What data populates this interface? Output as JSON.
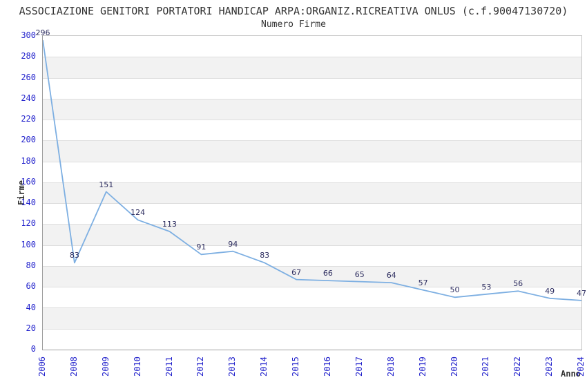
{
  "chart_data": {
    "type": "line",
    "title": "ASSOCIAZIONE GENITORI PORTATORI HANDICAP ARPA:ORGANIZ.RICREATIVA ONLUS (c.f.90047130720)",
    "subtitle": "Numero Firme",
    "xlabel": "Anno",
    "ylabel": "Firme",
    "x": [
      "2006",
      "2008",
      "2009",
      "2010",
      "2011",
      "2012",
      "2013",
      "2014",
      "2015",
      "2016",
      "2017",
      "2018",
      "2019",
      "2020",
      "2021",
      "2022",
      "2023",
      "2024"
    ],
    "values": [
      296,
      83,
      151,
      124,
      113,
      91,
      94,
      83,
      67,
      66,
      65,
      64,
      57,
      50,
      53,
      56,
      49,
      47
    ],
    "ylim": [
      0,
      300
    ],
    "ytick_step": 20,
    "y_ticks": [
      "0",
      "20",
      "40",
      "60",
      "80",
      "100",
      "120",
      "140",
      "160",
      "180",
      "200",
      "220",
      "240",
      "260",
      "280",
      "300"
    ],
    "grid": "horizontal gridlines with alternating gray bands",
    "legend": "none",
    "point_markers": false
  },
  "colors": {
    "title": "#333333",
    "tick_label": "#2222cc",
    "data_label": "#2b2b5e",
    "line": "#7dafe2",
    "band": "#f2f2f2",
    "grid": "#dedede"
  }
}
